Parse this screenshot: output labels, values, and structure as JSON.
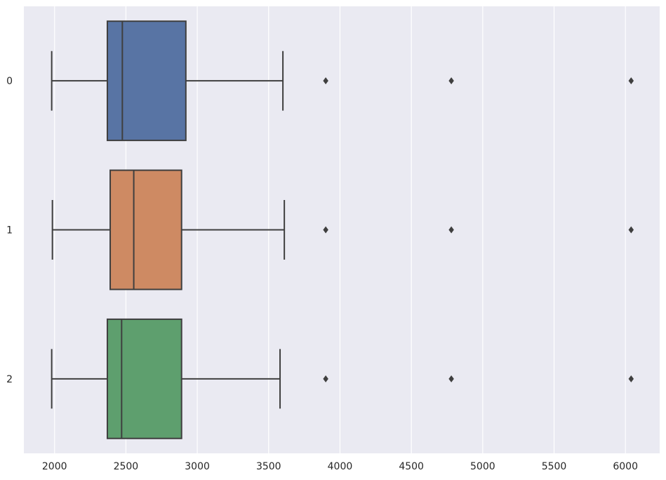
{
  "chart_data": {
    "type": "boxplot",
    "orientation": "horizontal",
    "xlim": [
      1785,
      6240
    ],
    "x_ticks": [
      2000,
      2500,
      3000,
      3500,
      4000,
      4500,
      5000,
      5500,
      6000
    ],
    "x_tick_labels": [
      "2000",
      "2500",
      "3000",
      "3500",
      "4000",
      "4500",
      "5000",
      "5500",
      "6000"
    ],
    "categories": [
      "0",
      "1",
      "2"
    ],
    "grid": true,
    "colors": {
      "background": "#EAEAF2",
      "grid": "#FFFFFF",
      "line": "#3F3F3F"
    },
    "boxes": [
      {
        "category": "0",
        "whisker_low": 1980,
        "q1": 2370,
        "median": 2475,
        "q3": 2920,
        "whisker_high": 3600,
        "outliers": [
          3900,
          4780,
          6040
        ],
        "color": "#5874A4"
      },
      {
        "category": "1",
        "whisker_low": 1985,
        "q1": 2390,
        "median": 2555,
        "q3": 2890,
        "whisker_high": 3610,
        "outliers": [
          3900,
          4780,
          6040
        ],
        "color": "#CE8A63"
      },
      {
        "category": "2",
        "whisker_low": 1980,
        "q1": 2370,
        "median": 2470,
        "q3": 2890,
        "whisker_high": 3580,
        "outliers": [
          3900,
          4780,
          6040
        ],
        "color": "#5E9F6E"
      }
    ]
  }
}
